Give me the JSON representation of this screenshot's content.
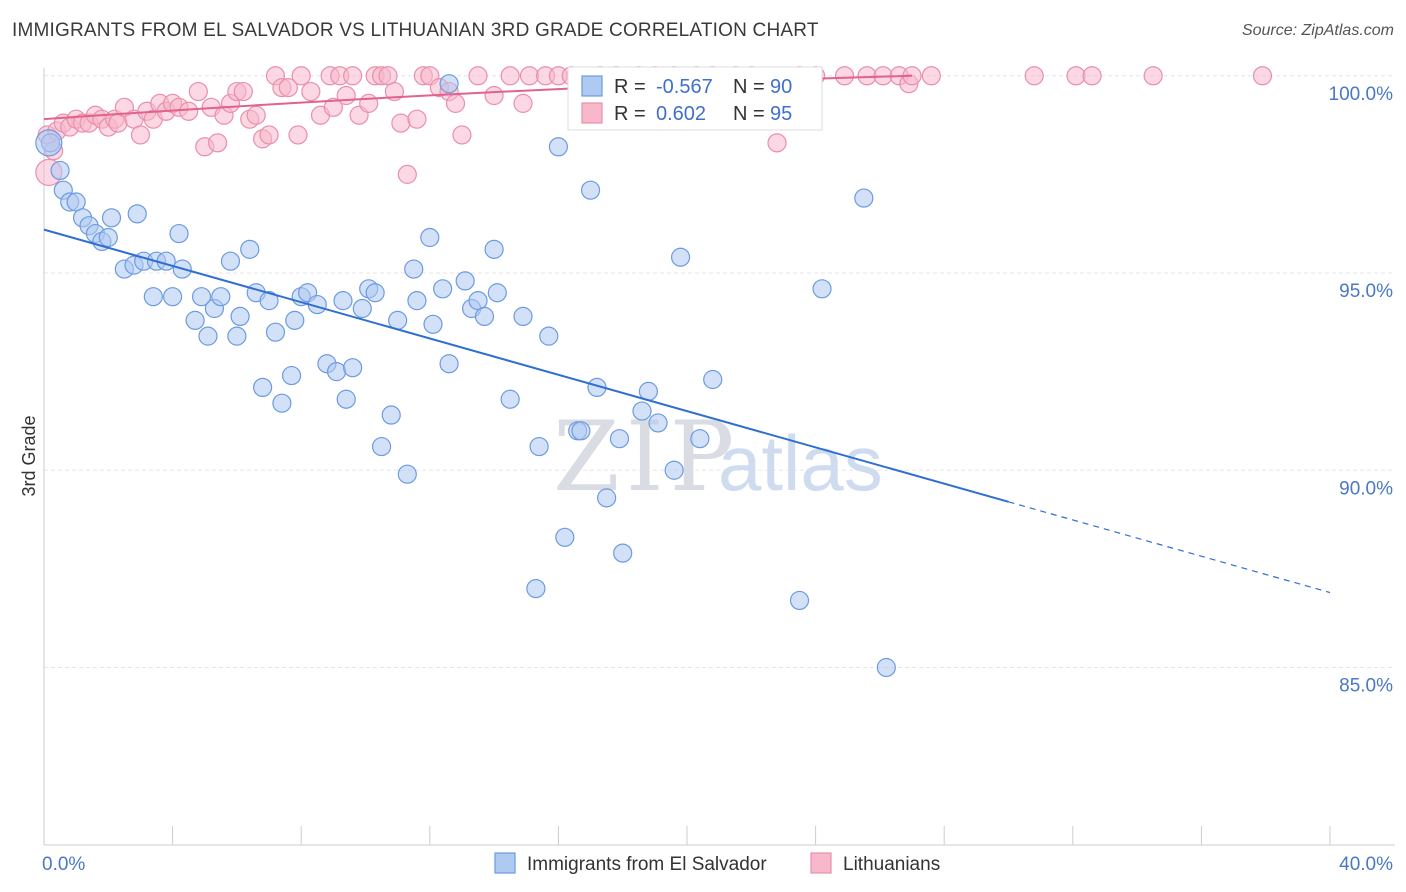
{
  "title": "IMMIGRANTS FROM EL SALVADOR VS LITHUANIAN 3RD GRADE CORRELATION CHART",
  "source": "Source: ZipAtlas.com",
  "watermark": {
    "zip": "ZIP",
    "atlas": "atlas"
  },
  "colors": {
    "blue_fill": "#aec9f2",
    "blue_stroke": "#6b9be0",
    "blue_line": "#2f6fd0",
    "pink_fill": "#f7b8cc",
    "pink_stroke": "#ea8fab",
    "pink_line": "#e0628d",
    "axis_text": "#4a78c7",
    "grid": "#e6e6e6"
  },
  "legend": {
    "r_label": "R =",
    "n_label": "N =",
    "series1": {
      "r": "-0.567",
      "n": "90"
    },
    "series2": {
      "r": "0.602",
      "n": "95"
    }
  },
  "chart_data": {
    "type": "scatter",
    "title": "IMMIGRANTS FROM EL SALVADOR VS LITHUANIAN 3RD GRADE CORRELATION CHART",
    "xlabel": "",
    "ylabel": "3rd Grade",
    "xlim": [
      0,
      40
    ],
    "ylim": [
      80.5,
      100.4
    ],
    "x_tick_labels": [
      {
        "value": 0,
        "label": "0.0%"
      },
      {
        "value": 40,
        "label": "40.0%"
      }
    ],
    "y_tick_labels": [
      {
        "value": 100,
        "label": "100.0%"
      },
      {
        "value": 95,
        "label": "95.0%"
      },
      {
        "value": 90,
        "label": "90.0%"
      },
      {
        "value": 85,
        "label": "85.0%"
      }
    ],
    "grid": true,
    "legend_position": "bottom",
    "series": [
      {
        "name": "Immigrants from El Salvador",
        "trend": {
          "x0": 0,
          "y0": 96.1,
          "x1": 30,
          "y1": 89.2,
          "dash_to_x": 40,
          "dash_to_y": 86.9
        },
        "points": [
          [
            0.2,
            98.3
          ],
          [
            0.5,
            97.6
          ],
          [
            0.6,
            97.1
          ],
          [
            0.8,
            96.8
          ],
          [
            1.0,
            96.8
          ],
          [
            1.2,
            96.4
          ],
          [
            1.4,
            96.2
          ],
          [
            1.6,
            96.0
          ],
          [
            1.8,
            95.8
          ],
          [
            2.0,
            95.9
          ],
          [
            2.1,
            96.4
          ],
          [
            2.5,
            95.1
          ],
          [
            2.8,
            95.2
          ],
          [
            2.9,
            96.5
          ],
          [
            3.1,
            95.3
          ],
          [
            3.4,
            94.4
          ],
          [
            3.5,
            95.3
          ],
          [
            3.8,
            95.3
          ],
          [
            4.0,
            94.4
          ],
          [
            4.2,
            96.0
          ],
          [
            4.3,
            95.1
          ],
          [
            4.7,
            93.8
          ],
          [
            4.9,
            94.4
          ],
          [
            5.1,
            93.4
          ],
          [
            5.3,
            94.1
          ],
          [
            5.5,
            94.4
          ],
          [
            5.8,
            95.3
          ],
          [
            6.0,
            93.4
          ],
          [
            6.1,
            93.9
          ],
          [
            6.4,
            95.6
          ],
          [
            6.6,
            94.5
          ],
          [
            6.8,
            92.1
          ],
          [
            7.0,
            94.3
          ],
          [
            7.2,
            93.5
          ],
          [
            7.4,
            91.7
          ],
          [
            7.7,
            92.4
          ],
          [
            7.8,
            93.8
          ],
          [
            8.0,
            94.4
          ],
          [
            8.2,
            94.5
          ],
          [
            8.5,
            94.2
          ],
          [
            8.8,
            92.7
          ],
          [
            9.1,
            92.5
          ],
          [
            9.3,
            94.3
          ],
          [
            9.4,
            91.8
          ],
          [
            9.6,
            92.6
          ],
          [
            9.9,
            94.1
          ],
          [
            10.1,
            94.6
          ],
          [
            10.3,
            94.5
          ],
          [
            10.5,
            90.6
          ],
          [
            10.8,
            91.4
          ],
          [
            11.0,
            93.8
          ],
          [
            11.3,
            89.9
          ],
          [
            11.5,
            95.1
          ],
          [
            11.6,
            94.3
          ],
          [
            12.0,
            95.9
          ],
          [
            12.1,
            93.7
          ],
          [
            12.4,
            94.6
          ],
          [
            12.6,
            92.7
          ],
          [
            13.1,
            94.8
          ],
          [
            13.3,
            94.1
          ],
          [
            13.5,
            94.3
          ],
          [
            13.7,
            93.9
          ],
          [
            14.0,
            95.6
          ],
          [
            14.1,
            94.5
          ],
          [
            14.5,
            91.8
          ],
          [
            14.9,
            93.9
          ],
          [
            15.3,
            87.0
          ],
          [
            15.4,
            90.6
          ],
          [
            15.7,
            93.4
          ],
          [
            16.0,
            98.2
          ],
          [
            16.2,
            88.3
          ],
          [
            16.6,
            91.0
          ],
          [
            17.0,
            97.1
          ],
          [
            17.2,
            92.1
          ],
          [
            17.5,
            89.3
          ],
          [
            17.9,
            90.8
          ],
          [
            18.0,
            87.9
          ],
          [
            18.6,
            91.5
          ],
          [
            18.8,
            92.0
          ],
          [
            19.1,
            91.2
          ],
          [
            19.6,
            90.0
          ],
          [
            19.8,
            95.4
          ],
          [
            20.4,
            90.8
          ],
          [
            20.8,
            92.3
          ],
          [
            23.5,
            86.7
          ],
          [
            24.2,
            94.6
          ],
          [
            25.5,
            96.9
          ],
          [
            26.2,
            85.0
          ],
          [
            12.6,
            99.8
          ],
          [
            16.7,
            91.0
          ]
        ]
      },
      {
        "name": "Lithuanians",
        "trend": {
          "x0": 0,
          "y0": 98.9,
          "x1": 27,
          "y1": 100.0
        },
        "points": [
          [
            0.1,
            98.5
          ],
          [
            0.3,
            98.1
          ],
          [
            0.4,
            98.6
          ],
          [
            0.6,
            98.8
          ],
          [
            0.8,
            98.7
          ],
          [
            1.0,
            98.9
          ],
          [
            1.2,
            98.8
          ],
          [
            1.4,
            98.8
          ],
          [
            1.6,
            99.0
          ],
          [
            1.8,
            98.9
          ],
          [
            2.0,
            98.7
          ],
          [
            2.2,
            98.9
          ],
          [
            2.3,
            98.8
          ],
          [
            2.5,
            99.2
          ],
          [
            2.8,
            98.9
          ],
          [
            3.0,
            98.5
          ],
          [
            3.2,
            99.1
          ],
          [
            3.4,
            98.9
          ],
          [
            3.6,
            99.3
          ],
          [
            3.8,
            99.1
          ],
          [
            4.0,
            99.3
          ],
          [
            4.2,
            99.2
          ],
          [
            4.5,
            99.1
          ],
          [
            4.8,
            99.6
          ],
          [
            5.0,
            98.2
          ],
          [
            5.2,
            99.2
          ],
          [
            5.4,
            98.3
          ],
          [
            5.6,
            99.0
          ],
          [
            5.8,
            99.3
          ],
          [
            6.0,
            99.6
          ],
          [
            6.2,
            99.6
          ],
          [
            6.4,
            98.9
          ],
          [
            6.6,
            99.0
          ],
          [
            6.8,
            98.4
          ],
          [
            7.0,
            98.5
          ],
          [
            7.2,
            100.0
          ],
          [
            7.4,
            99.7
          ],
          [
            7.6,
            99.7
          ],
          [
            7.9,
            98.5
          ],
          [
            8.0,
            100.0
          ],
          [
            8.3,
            99.6
          ],
          [
            8.6,
            99.0
          ],
          [
            8.9,
            100.0
          ],
          [
            9.0,
            99.2
          ],
          [
            9.2,
            100.0
          ],
          [
            9.4,
            99.5
          ],
          [
            9.6,
            100.0
          ],
          [
            9.8,
            99.0
          ],
          [
            10.1,
            99.3
          ],
          [
            10.3,
            100.0
          ],
          [
            10.5,
            100.0
          ],
          [
            10.7,
            100.0
          ],
          [
            10.9,
            99.6
          ],
          [
            11.1,
            98.8
          ],
          [
            11.3,
            97.5
          ],
          [
            11.6,
            98.9
          ],
          [
            11.8,
            100.0
          ],
          [
            12.0,
            100.0
          ],
          [
            12.3,
            99.7
          ],
          [
            12.6,
            99.6
          ],
          [
            12.8,
            99.3
          ],
          [
            13.0,
            98.5
          ],
          [
            13.5,
            100.0
          ],
          [
            14.0,
            99.5
          ],
          [
            14.5,
            100.0
          ],
          [
            14.9,
            99.3
          ],
          [
            15.1,
            100.0
          ],
          [
            15.6,
            100.0
          ],
          [
            16.0,
            100.0
          ],
          [
            16.4,
            100.0
          ],
          [
            16.9,
            99.7
          ],
          [
            17.3,
            100.0
          ],
          [
            17.8,
            100.0
          ],
          [
            18.5,
            100.0
          ],
          [
            19.0,
            100.0
          ],
          [
            19.6,
            100.0
          ],
          [
            20.3,
            100.0
          ],
          [
            20.8,
            100.0
          ],
          [
            21.5,
            100.0
          ],
          [
            22.0,
            100.0
          ],
          [
            22.8,
            98.3
          ],
          [
            23.5,
            100.0
          ],
          [
            24.0,
            100.0
          ],
          [
            24.9,
            100.0
          ],
          [
            25.6,
            100.0
          ],
          [
            26.1,
            100.0
          ],
          [
            26.6,
            100.0
          ],
          [
            26.9,
            99.8
          ],
          [
            27.0,
            100.0
          ],
          [
            27.6,
            100.0
          ],
          [
            30.8,
            100.0
          ],
          [
            32.1,
            100.0
          ],
          [
            32.6,
            100.0
          ],
          [
            34.5,
            100.0
          ],
          [
            37.9,
            100.0
          ]
        ]
      }
    ]
  }
}
